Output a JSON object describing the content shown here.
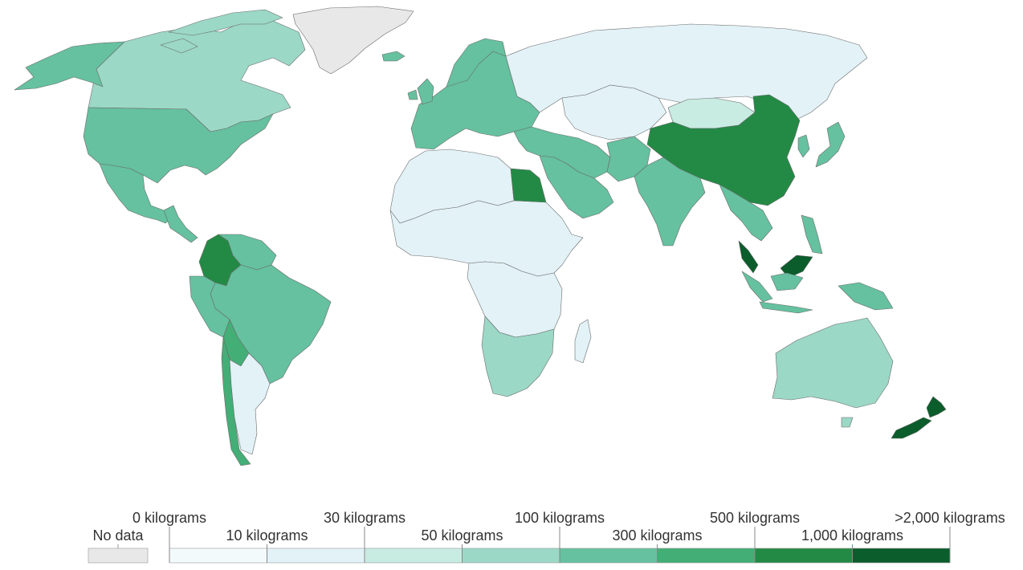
{
  "colors": {
    "no_data": "#e8e8e8",
    "bins": [
      "#f3fafb",
      "#e2f2f7",
      "#c8ebe2",
      "#9bd8c6",
      "#65c1a0",
      "#43ae76",
      "#238a45",
      "#0b5d2b"
    ],
    "border": "#6b6b6b"
  },
  "legend": {
    "no_data_label": "No data",
    "thresholds": [
      "0 kilograms",
      "10 kilograms",
      "30 kilograms",
      "50 kilograms",
      "100 kilograms",
      "300 kilograms",
      "500 kilograms",
      "1,000 kilograms",
      ">2,000 kilograms"
    ]
  },
  "regions": [
    {
      "name": "Greenland",
      "bin": "no_data"
    },
    {
      "name": "Canada",
      "bin": 3
    },
    {
      "name": "Alaska",
      "bin": 4
    },
    {
      "name": "United States",
      "bin": 4
    },
    {
      "name": "Mexico",
      "bin": 4
    },
    {
      "name": "Colombia",
      "bin": 6
    },
    {
      "name": "Brazil",
      "bin": 4
    },
    {
      "name": "Peru",
      "bin": 4
    },
    {
      "name": "Chile",
      "bin": 5
    },
    {
      "name": "Argentina",
      "bin": 1
    },
    {
      "name": "Russia",
      "bin": 1
    },
    {
      "name": "China",
      "bin": 6
    },
    {
      "name": "Mongolia",
      "bin": 2
    },
    {
      "name": "India",
      "bin": 4
    },
    {
      "name": "Australia",
      "bin": 3
    },
    {
      "name": "New Zealand",
      "bin": 7
    },
    {
      "name": "Egypt",
      "bin": 6
    },
    {
      "name": "Malaysia",
      "bin": 7
    },
    {
      "name": "Indonesia",
      "bin": 4
    },
    {
      "name": "Saudi Arabia",
      "bin": 4
    },
    {
      "name": "South Africa",
      "bin": 3
    },
    {
      "name": "Japan",
      "bin": 4
    }
  ]
}
